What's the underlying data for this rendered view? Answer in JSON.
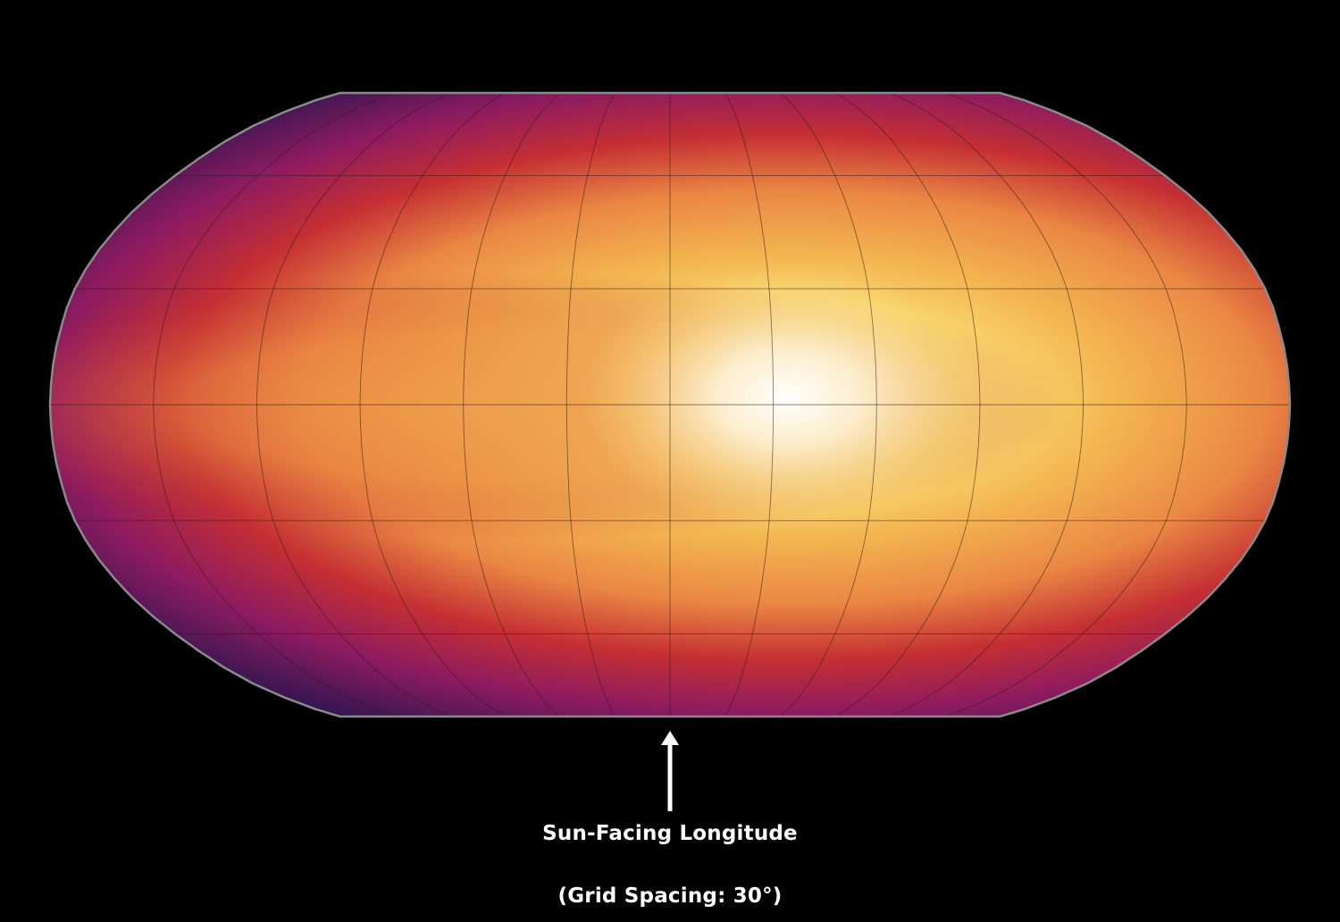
{
  "map": {
    "colors": {
      "background": "#000000",
      "outline": "#8a8a8a",
      "gridline": "#2a1a14",
      "arrow": "#ffffff",
      "colormap": [
        "#2c1550",
        "#8c1a60",
        "#c02a32",
        "#e8703a",
        "#f5c050",
        "#fff8c8",
        "#ffffff"
      ]
    },
    "grid_spacing_degrees": 30,
    "hotspot_longitude_degrees": 20,
    "hotspot_latitude_degrees": 0
  },
  "annotation": {
    "arrow_icon": "up-arrow-icon",
    "label": "Sun-Facing Longitude",
    "grid_note": "(Grid Spacing: 30°)"
  }
}
